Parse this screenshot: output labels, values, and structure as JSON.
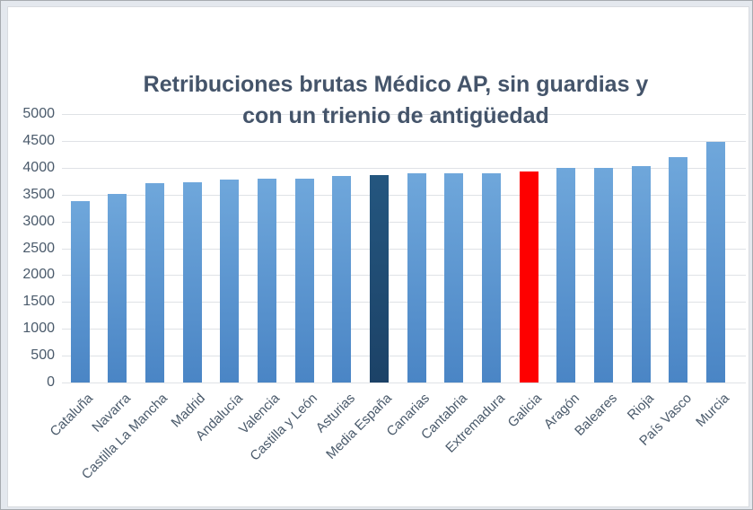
{
  "chart_data": {
    "type": "bar",
    "title": "Retribuciones brutas Médico AP, sin guardias y con un trienio de antigüedad",
    "title_lines": [
      "Retribuciones brutas Médico AP, sin guardias y",
      "con un trienio de antigüedad"
    ],
    "categories": [
      "Cataluña",
      "Navarra",
      "Castilla La Mancha",
      "Madrid",
      "Andalucía",
      "Valencia",
      "Castilla y León",
      "Asturias",
      "Media España",
      "Canarias",
      "Cantabria",
      "Extremadura",
      "Galicia",
      "Aragón",
      "Baleares",
      "Rioja",
      "País Vasco",
      "Murcia"
    ],
    "values": [
      3380,
      3510,
      3710,
      3730,
      3775,
      3790,
      3805,
      3845,
      3865,
      3895,
      3895,
      3895,
      3930,
      4000,
      4000,
      4035,
      4205,
      4485
    ],
    "bar_roles": [
      "default",
      "default",
      "default",
      "default",
      "default",
      "default",
      "default",
      "default",
      "dark",
      "default",
      "default",
      "default",
      "red",
      "default",
      "default",
      "default",
      "default",
      "default"
    ],
    "xlabel": "",
    "ylabel": "",
    "ylim": [
      0,
      5000
    ],
    "y_step": 500,
    "y_ticks": [
      "0",
      "500",
      "1000",
      "1500",
      "2000",
      "2500",
      "3000",
      "3500",
      "4000",
      "4500",
      "5000"
    ],
    "grid": "horizontal",
    "legend": "none",
    "colors": {
      "bar_gradient_top": "#6FA7DB",
      "bar_gradient_bottom": "#4A85C5",
      "highlight_dark_top": "#24567F",
      "highlight_dark_bottom": "#1C4267",
      "highlight_red": "#FE0000",
      "title": "#44546A",
      "axis_label": "#4A5A6B",
      "gridline": "#DFE2E6",
      "page_background": "#E4E8EE",
      "chart_background": "#FFFFFF"
    }
  }
}
